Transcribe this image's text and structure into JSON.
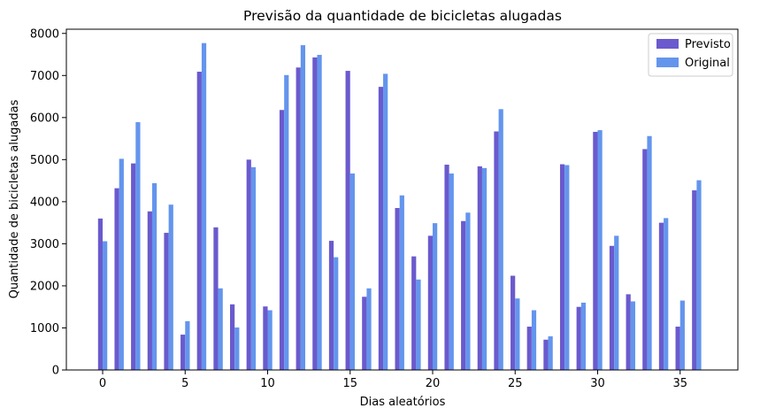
{
  "chart_data": {
    "type": "bar",
    "title": "Previsão da quantidade de bicicletas alugadas",
    "xlabel": "Dias aleatórios",
    "ylabel": "Quantidade de bicicletas alugadas",
    "xlim": [
      -2.2,
      38.5
    ],
    "ylim": [
      0,
      8100
    ],
    "xticks": [
      0,
      5,
      10,
      15,
      20,
      25,
      30,
      35
    ],
    "yticks": [
      0,
      1000,
      2000,
      3000,
      4000,
      5000,
      6000,
      7000,
      8000
    ],
    "x": [
      0,
      1,
      2,
      3,
      4,
      5,
      6,
      7,
      8,
      9,
      10,
      11,
      12,
      13,
      14,
      15,
      16,
      17,
      18,
      19,
      20,
      21,
      22,
      23,
      24,
      25,
      26,
      27,
      28,
      29,
      30,
      31,
      32,
      33,
      34,
      35,
      36
    ],
    "series": [
      {
        "name": "Previsto",
        "color": "#6a5acd",
        "values": [
          3600,
          4320,
          4910,
          3770,
          3260,
          840,
          7090,
          3390,
          1560,
          5000,
          1510,
          6180,
          7190,
          7430,
          3070,
          7110,
          1740,
          6730,
          3850,
          2700,
          3190,
          4880,
          3540,
          4840,
          5670,
          2240,
          1030,
          720,
          4890,
          1500,
          5660,
          2950,
          1800,
          5250,
          3500,
          1030,
          4270
        ]
      },
      {
        "name": "Original",
        "color": "#6495ed",
        "values": [
          3060,
          5020,
          5890,
          4440,
          3930,
          1160,
          7770,
          1940,
          1010,
          4820,
          1420,
          7010,
          7720,
          7490,
          2680,
          4670,
          1940,
          7040,
          4150,
          2150,
          3490,
          4670,
          3740,
          4800,
          6200,
          1700,
          1420,
          800,
          4870,
          1600,
          5700,
          3190,
          1630,
          5560,
          3610,
          1650,
          4510
        ]
      }
    ],
    "legend_position": "upper-right"
  }
}
